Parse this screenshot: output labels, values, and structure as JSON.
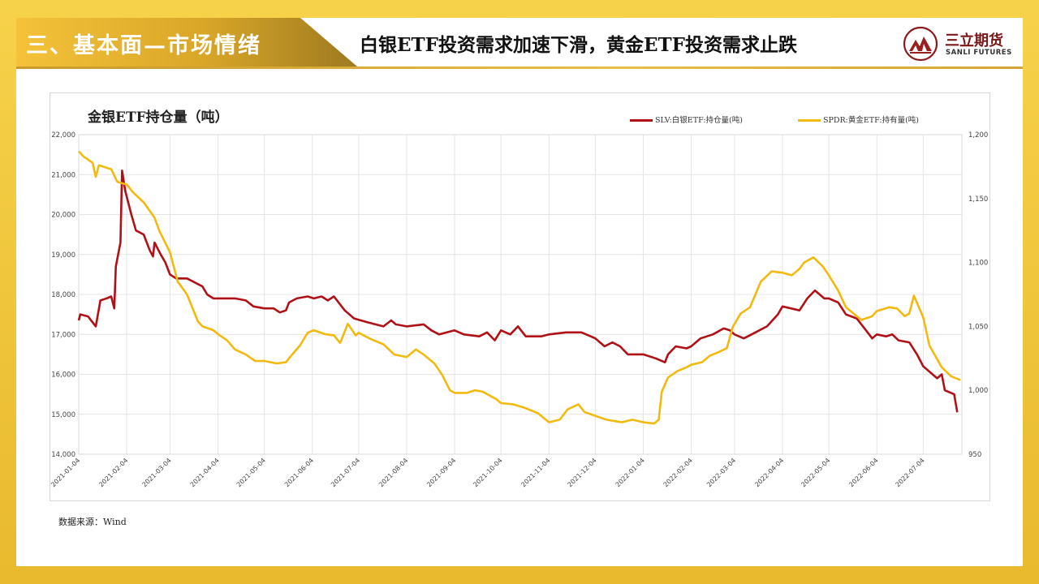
{
  "header": {
    "section_title": "三、基本面—市场情绪",
    "main_title": "白银ETF投资需求加速下滑，黄金ETF投资需求止跌",
    "brand_cn": "三立期货",
    "brand_en": "SANLI FUTURES"
  },
  "footer": {
    "source": "数据来源：Wind"
  },
  "colors": {
    "silver_line": "#b01116",
    "gold_line": "#f2b90f"
  },
  "chart_data": {
    "type": "line",
    "title": "金银ETF持仓量（吨）",
    "legend_placement": "top-right",
    "grid": true,
    "x_tick_labels": [
      "2021-01-04",
      "2021-02-04",
      "2021-03-04",
      "2021-04-04",
      "2021-05-04",
      "2021-06-04",
      "2021-07-04",
      "2021-08-04",
      "2021-09-04",
      "2021-10-04",
      "2021-11-04",
      "2021-12-04",
      "2022-01-04",
      "2022-02-04",
      "2022-03-04",
      "2022-04-04",
      "2022-05-04",
      "2022-06-04",
      "2022-07-04"
    ],
    "y_left": {
      "ylim": [
        14000,
        22000
      ],
      "ticks": [
        "14,000",
        "15,000",
        "16,000",
        "17,000",
        "18,000",
        "19,000",
        "20,000",
        "21,000",
        "22,000"
      ]
    },
    "y_right": {
      "ylim": [
        950,
        1200
      ],
      "ticks": [
        "950",
        "1,000",
        "1,050",
        "1,100",
        "1,150",
        "1,200"
      ]
    },
    "series": [
      {
        "name": "SLV:白银ETF:持仓量(吨)",
        "axis": "left",
        "points": [
          [
            "2021-01-04",
            17350
          ],
          [
            "2021-01-05",
            17500
          ],
          [
            "2021-01-10",
            17450
          ],
          [
            "2021-01-15",
            17200
          ],
          [
            "2021-01-18",
            17850
          ],
          [
            "2021-01-22",
            17900
          ],
          [
            "2021-01-25",
            17950
          ],
          [
            "2021-01-27",
            17650
          ],
          [
            "2021-01-28",
            18700
          ],
          [
            "2021-01-31",
            19300
          ],
          [
            "2021-02-01",
            21100
          ],
          [
            "2021-02-03",
            20600
          ],
          [
            "2021-02-07",
            20000
          ],
          [
            "2021-02-10",
            19600
          ],
          [
            "2021-02-15",
            19500
          ],
          [
            "2021-02-19",
            19100
          ],
          [
            "2021-02-21",
            18950
          ],
          [
            "2021-02-22",
            19300
          ],
          [
            "2021-02-26",
            19000
          ],
          [
            "2021-03-01",
            18800
          ],
          [
            "2021-03-04",
            18500
          ],
          [
            "2021-03-08",
            18400
          ],
          [
            "2021-03-15",
            18400
          ],
          [
            "2021-03-25",
            18200
          ],
          [
            "2021-03-28",
            18000
          ],
          [
            "2021-04-01",
            17900
          ],
          [
            "2021-04-15",
            17900
          ],
          [
            "2021-04-22",
            17850
          ],
          [
            "2021-04-27",
            17700
          ],
          [
            "2021-05-04",
            17650
          ],
          [
            "2021-05-10",
            17650
          ],
          [
            "2021-05-14",
            17550
          ],
          [
            "2021-05-18",
            17600
          ],
          [
            "2021-05-20",
            17800
          ],
          [
            "2021-05-25",
            17900
          ],
          [
            "2021-06-01",
            17950
          ],
          [
            "2021-06-05",
            17900
          ],
          [
            "2021-06-10",
            17950
          ],
          [
            "2021-06-14",
            17850
          ],
          [
            "2021-06-18",
            17950
          ],
          [
            "2021-06-25",
            17600
          ],
          [
            "2021-07-01",
            17400
          ],
          [
            "2021-07-10",
            17300
          ],
          [
            "2021-07-20",
            17200
          ],
          [
            "2021-07-25",
            17350
          ],
          [
            "2021-07-28",
            17250
          ],
          [
            "2021-08-04",
            17200
          ],
          [
            "2021-08-15",
            17250
          ],
          [
            "2021-08-20",
            17100
          ],
          [
            "2021-08-25",
            17000
          ],
          [
            "2021-09-04",
            17100
          ],
          [
            "2021-09-10",
            17000
          ],
          [
            "2021-09-20",
            16950
          ],
          [
            "2021-09-25",
            17050
          ],
          [
            "2021-09-30",
            16850
          ],
          [
            "2021-10-04",
            17100
          ],
          [
            "2021-10-10",
            17000
          ],
          [
            "2021-10-15",
            17200
          ],
          [
            "2021-10-20",
            16950
          ],
          [
            "2021-10-30",
            16950
          ],
          [
            "2021-11-04",
            17000
          ],
          [
            "2021-11-15",
            17050
          ],
          [
            "2021-11-25",
            17050
          ],
          [
            "2021-12-01",
            16950
          ],
          [
            "2021-12-04",
            16900
          ],
          [
            "2021-12-10",
            16700
          ],
          [
            "2021-12-15",
            16800
          ],
          [
            "2021-12-20",
            16700
          ],
          [
            "2021-12-25",
            16500
          ],
          [
            "2022-01-04",
            16500
          ],
          [
            "2022-01-12",
            16400
          ],
          [
            "2022-01-18",
            16300
          ],
          [
            "2022-01-20",
            16500
          ],
          [
            "2022-01-25",
            16700
          ],
          [
            "2022-02-01",
            16650
          ],
          [
            "2022-02-04",
            16700
          ],
          [
            "2022-02-10",
            16900
          ],
          [
            "2022-02-18",
            17000
          ],
          [
            "2022-02-25",
            17150
          ],
          [
            "2022-03-01",
            17100
          ],
          [
            "2022-03-04",
            17000
          ],
          [
            "2022-03-10",
            16900
          ],
          [
            "2022-03-15",
            17000
          ],
          [
            "2022-03-20",
            17100
          ],
          [
            "2022-03-25",
            17200
          ],
          [
            "2022-04-01",
            17500
          ],
          [
            "2022-04-04",
            17700
          ],
          [
            "2022-04-15",
            17600
          ],
          [
            "2022-04-20",
            17900
          ],
          [
            "2022-04-25",
            18100
          ],
          [
            "2022-05-01",
            17900
          ],
          [
            "2022-05-04",
            17900
          ],
          [
            "2022-05-10",
            17800
          ],
          [
            "2022-05-15",
            17500
          ],
          [
            "2022-05-22",
            17400
          ],
          [
            "2022-05-28",
            17100
          ],
          [
            "2022-06-01",
            16900
          ],
          [
            "2022-06-04",
            17000
          ],
          [
            "2022-06-10",
            16950
          ],
          [
            "2022-06-14",
            17000
          ],
          [
            "2022-06-18",
            16850
          ],
          [
            "2022-06-25",
            16800
          ],
          [
            "2022-06-30",
            16500
          ],
          [
            "2022-07-04",
            16200
          ],
          [
            "2022-07-10",
            16000
          ],
          [
            "2022-07-13",
            15900
          ],
          [
            "2022-07-16",
            16000
          ],
          [
            "2022-07-18",
            15600
          ],
          [
            "2022-07-24",
            15500
          ],
          [
            "2022-07-26",
            15050
          ]
        ]
      },
      {
        "name": "SPDR:黄金ETF:持有量(吨)",
        "axis": "right",
        "points": [
          [
            "2021-01-04",
            1187
          ],
          [
            "2021-01-07",
            1183
          ],
          [
            "2021-01-13",
            1178
          ],
          [
            "2021-01-15",
            1167
          ],
          [
            "2021-01-17",
            1176
          ],
          [
            "2021-01-25",
            1173
          ],
          [
            "2021-01-29",
            1163
          ],
          [
            "2021-02-04",
            1161
          ],
          [
            "2021-02-08",
            1155
          ],
          [
            "2021-02-15",
            1147
          ],
          [
            "2021-02-22",
            1135
          ],
          [
            "2021-02-25",
            1125
          ],
          [
            "2021-03-04",
            1108
          ],
          [
            "2021-03-09",
            1085
          ],
          [
            "2021-03-15",
            1075
          ],
          [
            "2021-03-22",
            1054
          ],
          [
            "2021-03-25",
            1050
          ],
          [
            "2021-04-01",
            1047
          ],
          [
            "2021-04-04",
            1044
          ],
          [
            "2021-04-10",
            1039
          ],
          [
            "2021-04-15",
            1032
          ],
          [
            "2021-04-22",
            1028
          ],
          [
            "2021-04-28",
            1023
          ],
          [
            "2021-05-04",
            1023
          ],
          [
            "2021-05-12",
            1021
          ],
          [
            "2021-05-18",
            1022
          ],
          [
            "2021-05-22",
            1028
          ],
          [
            "2021-05-27",
            1035
          ],
          [
            "2021-06-01",
            1045
          ],
          [
            "2021-06-05",
            1047
          ],
          [
            "2021-06-12",
            1044
          ],
          [
            "2021-06-18",
            1043
          ],
          [
            "2021-06-22",
            1037
          ],
          [
            "2021-06-27",
            1052
          ],
          [
            "2021-07-02",
            1043
          ],
          [
            "2021-07-04",
            1045
          ],
          [
            "2021-07-12",
            1040
          ],
          [
            "2021-07-20",
            1036
          ],
          [
            "2021-07-27",
            1028
          ],
          [
            "2021-08-04",
            1026
          ],
          [
            "2021-08-10",
            1032
          ],
          [
            "2021-08-15",
            1028
          ],
          [
            "2021-08-22",
            1021
          ],
          [
            "2021-08-27",
            1012
          ],
          [
            "2021-09-01",
            1000
          ],
          [
            "2021-09-04",
            998
          ],
          [
            "2021-09-12",
            998
          ],
          [
            "2021-09-17",
            1000
          ],
          [
            "2021-09-22",
            999
          ],
          [
            "2021-09-25",
            997
          ],
          [
            "2021-10-01",
            993
          ],
          [
            "2021-10-04",
            990
          ],
          [
            "2021-10-12",
            989
          ],
          [
            "2021-10-20",
            986
          ],
          [
            "2021-10-28",
            982
          ],
          [
            "2021-11-04",
            975
          ],
          [
            "2021-11-11",
            977
          ],
          [
            "2021-11-16",
            985
          ],
          [
            "2021-11-23",
            989
          ],
          [
            "2021-11-27",
            983
          ],
          [
            "2021-12-04",
            980
          ],
          [
            "2021-12-11",
            977
          ],
          [
            "2021-12-16",
            976
          ],
          [
            "2021-12-21",
            975
          ],
          [
            "2021-12-28",
            977
          ],
          [
            "2022-01-04",
            975
          ],
          [
            "2022-01-11",
            974
          ],
          [
            "2022-01-14",
            977
          ],
          [
            "2022-01-16",
            999
          ],
          [
            "2022-01-20",
            1010
          ],
          [
            "2022-01-26",
            1015
          ],
          [
            "2022-02-01",
            1018
          ],
          [
            "2022-02-04",
            1020
          ],
          [
            "2022-02-11",
            1022
          ],
          [
            "2022-02-16",
            1027
          ],
          [
            "2022-02-22",
            1030
          ],
          [
            "2022-02-27",
            1033
          ],
          [
            "2022-03-03",
            1050
          ],
          [
            "2022-03-08",
            1060
          ],
          [
            "2022-03-14",
            1065
          ],
          [
            "2022-03-21",
            1085
          ],
          [
            "2022-03-28",
            1093
          ],
          [
            "2022-04-04",
            1092
          ],
          [
            "2022-04-10",
            1090
          ],
          [
            "2022-04-15",
            1095
          ],
          [
            "2022-04-18",
            1100
          ],
          [
            "2022-04-24",
            1104
          ],
          [
            "2022-04-30",
            1097
          ],
          [
            "2022-05-04",
            1090
          ],
          [
            "2022-05-10",
            1078
          ],
          [
            "2022-05-15",
            1065
          ],
          [
            "2022-05-20",
            1060
          ],
          [
            "2022-05-25",
            1055
          ],
          [
            "2022-06-01",
            1058
          ],
          [
            "2022-06-04",
            1062
          ],
          [
            "2022-06-12",
            1065
          ],
          [
            "2022-06-17",
            1064
          ],
          [
            "2022-06-22",
            1058
          ],
          [
            "2022-06-25",
            1060
          ],
          [
            "2022-06-28",
            1074
          ],
          [
            "2022-07-04",
            1057
          ],
          [
            "2022-07-08",
            1035
          ],
          [
            "2022-07-16",
            1018
          ],
          [
            "2022-07-22",
            1011
          ],
          [
            "2022-07-28",
            1008
          ]
        ]
      }
    ]
  }
}
